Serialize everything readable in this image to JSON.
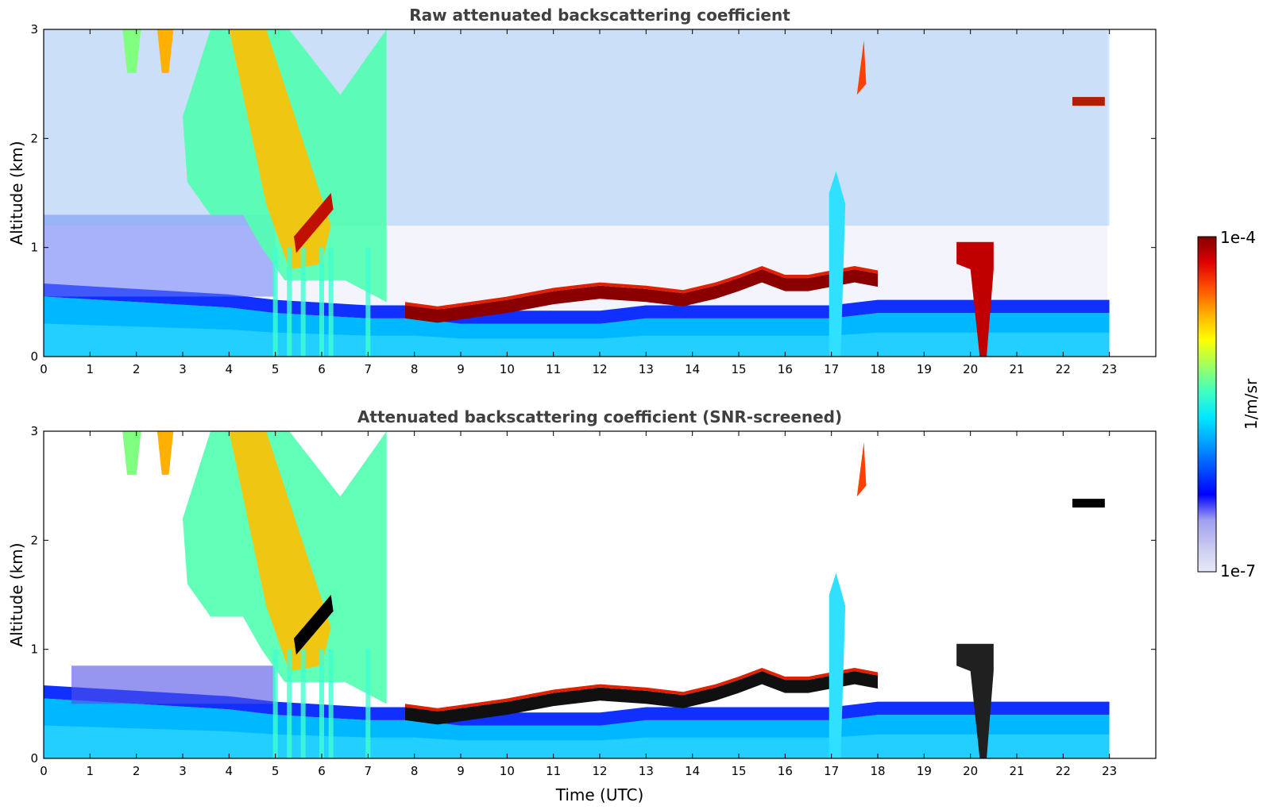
{
  "chart_data": [
    {
      "type": "heatmap",
      "title": "Raw attenuated backscattering coefficient",
      "xlabel": "",
      "ylabel": "Altitude (km)",
      "xlim": [
        0,
        24
      ],
      "ylim": [
        0,
        3
      ],
      "xticks": [
        "0",
        "1",
        "2",
        "3",
        "4",
        "5",
        "6",
        "7",
        "8",
        "9",
        "10",
        "11",
        "12",
        "13",
        "14",
        "15",
        "16",
        "17",
        "18",
        "19",
        "20",
        "21",
        "22",
        "23"
      ],
      "yticks": [
        "0",
        "1",
        "2",
        "3"
      ],
      "data_end_hour": 23,
      "screened": false
    },
    {
      "type": "heatmap",
      "title": "Attenuated backscattering coefficient (SNR-screened)",
      "xlabel": "Time (UTC)",
      "ylabel": "Altitude (km)",
      "xlim": [
        0,
        24
      ],
      "ylim": [
        0,
        3
      ],
      "xticks": [
        "0",
        "1",
        "2",
        "3",
        "4",
        "5",
        "6",
        "7",
        "8",
        "9",
        "10",
        "11",
        "12",
        "13",
        "14",
        "15",
        "16",
        "17",
        "18",
        "19",
        "20",
        "21",
        "22",
        "23"
      ],
      "yticks": [
        "0",
        "1",
        "2",
        "3"
      ],
      "data_end_hour": 23,
      "screened": true
    }
  ],
  "colorbar": {
    "label": "1/m/sr",
    "max_label": "1e-4",
    "min_label": "1e-7",
    "scale": "log",
    "range": [
      1e-07,
      0.0001
    ],
    "colormap": [
      "#e8e8f8",
      "#c8c8f0",
      "#a0a0f0",
      "#0000ff",
      "#0050ff",
      "#00a0ff",
      "#00e8ff",
      "#40ffc0",
      "#a0ff60",
      "#ffff00",
      "#ffb000",
      "#ff5000",
      "#e00000",
      "#800000"
    ]
  },
  "features": {
    "boundary_layer_top_km": [
      [
        0,
        0.55
      ],
      [
        2,
        0.5
      ],
      [
        4,
        0.45
      ],
      [
        5,
        0.4
      ],
      [
        7,
        0.35
      ],
      [
        8,
        0.35
      ],
      [
        9,
        0.3
      ],
      [
        10,
        0.3
      ],
      [
        11,
        0.3
      ],
      [
        12,
        0.3
      ],
      [
        13,
        0.35
      ],
      [
        14,
        0.35
      ],
      [
        15,
        0.35
      ],
      [
        16,
        0.35
      ],
      [
        17,
        0.35
      ],
      [
        18,
        0.4
      ],
      [
        19,
        0.4
      ],
      [
        20,
        0.4
      ],
      [
        21,
        0.4
      ],
      [
        22,
        0.4
      ],
      [
        23,
        0.4
      ]
    ],
    "cloud_base_km": [
      [
        7.8,
        0.37
      ],
      [
        8.5,
        0.33
      ],
      [
        9,
        0.36
      ],
      [
        10,
        0.42
      ],
      [
        11,
        0.5
      ],
      [
        12,
        0.55
      ],
      [
        13,
        0.52
      ],
      [
        13.8,
        0.48
      ],
      [
        14.5,
        0.55
      ],
      [
        15,
        0.62
      ],
      [
        15.5,
        0.7
      ],
      [
        16,
        0.62
      ],
      [
        16.5,
        0.62
      ],
      [
        17,
        0.66
      ],
      [
        17.5,
        0.7
      ],
      [
        18,
        0.66
      ]
    ],
    "rain_shafts_hours": [
      5.0,
      5.3,
      5.6,
      6.0,
      6.2,
      7.0,
      17.05,
      20.3
    ]
  }
}
